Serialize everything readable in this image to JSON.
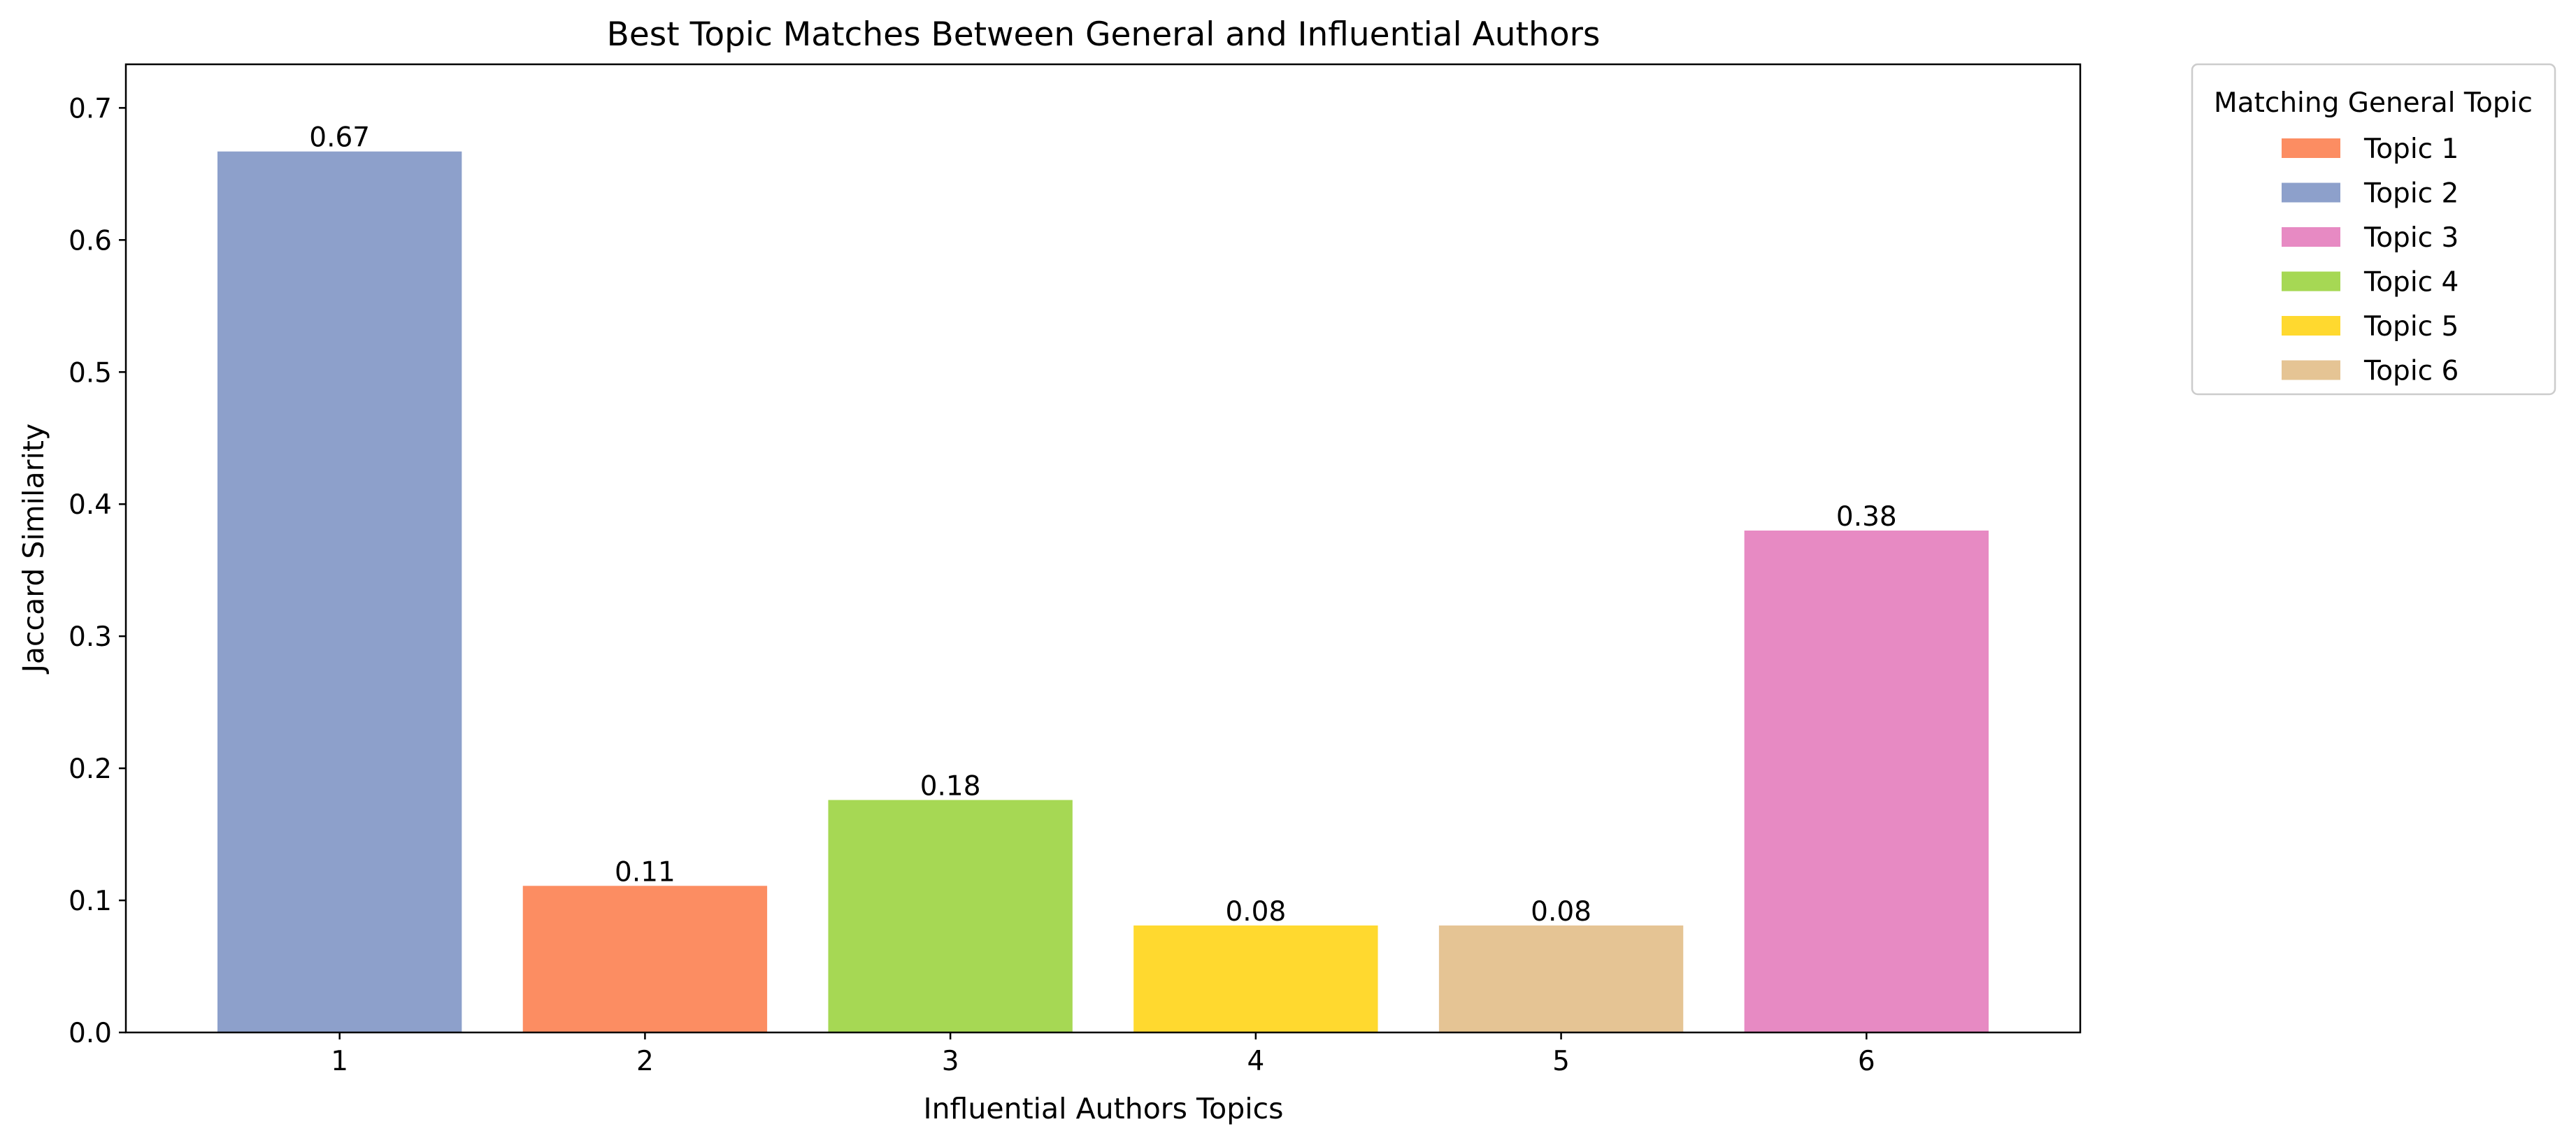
{
  "chart_data": {
    "type": "bar",
    "title": "Best Topic Matches Between General and Influential Authors",
    "xlabel": "Influential Authors Topics",
    "ylabel": "Jaccard Similarity",
    "categories": [
      "1",
      "2",
      "3",
      "4",
      "5",
      "6"
    ],
    "values": [
      0.667,
      0.111,
      0.176,
      0.081,
      0.081,
      0.38
    ],
    "data_labels": [
      "0.67",
      "0.11",
      "0.18",
      "0.08",
      "0.08",
      "0.38"
    ],
    "matching_general_topic": [
      "Topic 2",
      "Topic 1",
      "Topic 4",
      "Topic 5",
      "Topic 6",
      "Topic 3"
    ],
    "ylim": [
      0,
      0.733
    ],
    "yticks": [
      0.0,
      0.1,
      0.2,
      0.3,
      0.4,
      0.5,
      0.6,
      0.7
    ],
    "ytick_labels": [
      "0.0",
      "0.1",
      "0.2",
      "0.3",
      "0.4",
      "0.5",
      "0.6",
      "0.7"
    ],
    "grid": false,
    "legend": {
      "title": "Matching General Topic",
      "placement": "outside-top-right",
      "entries": [
        {
          "label": "Topic 1",
          "color": "#fc8d62"
        },
        {
          "label": "Topic 2",
          "color": "#8da0cb"
        },
        {
          "label": "Topic 3",
          "color": "#e78ac3"
        },
        {
          "label": "Topic 4",
          "color": "#a6d854"
        },
        {
          "label": "Topic 5",
          "color": "#ffd92f"
        },
        {
          "label": "Topic 6",
          "color": "#e5c494"
        }
      ]
    }
  }
}
